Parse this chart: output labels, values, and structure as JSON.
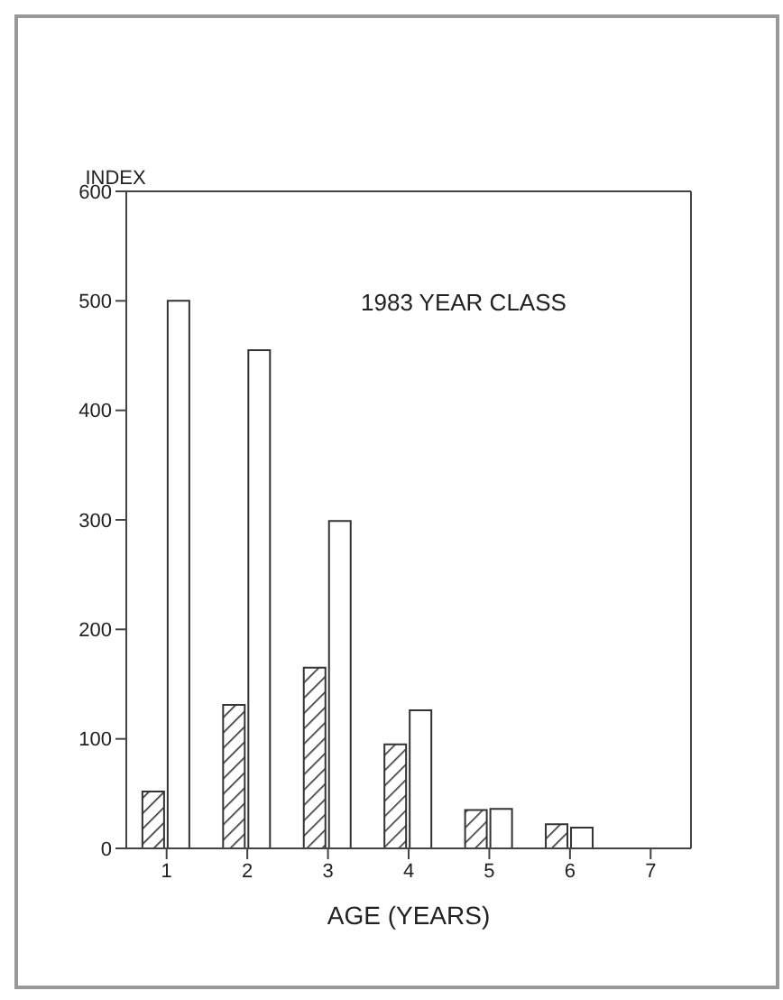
{
  "chart_data": {
    "type": "bar",
    "ylabel": "INDEX",
    "xlabel": "AGE (YEARS)",
    "annotations": [
      "1983 YEAR CLASS"
    ],
    "categories": [
      "1",
      "2",
      "3",
      "4",
      "5",
      "6",
      "7"
    ],
    "series": [
      {
        "color": "#333333",
        "values": [
          52,
          131,
          165,
          95,
          35,
          22,
          null
        ]
      },
      {
        "color": "#ffffff",
        "values": [
          500,
          455,
          299,
          126,
          36,
          19,
          null
        ]
      }
    ],
    "ylim": [
      0,
      600
    ],
    "yticks": [
      0,
      100,
      200,
      300,
      400,
      500,
      600
    ],
    "grid": false,
    "legend": false
  }
}
